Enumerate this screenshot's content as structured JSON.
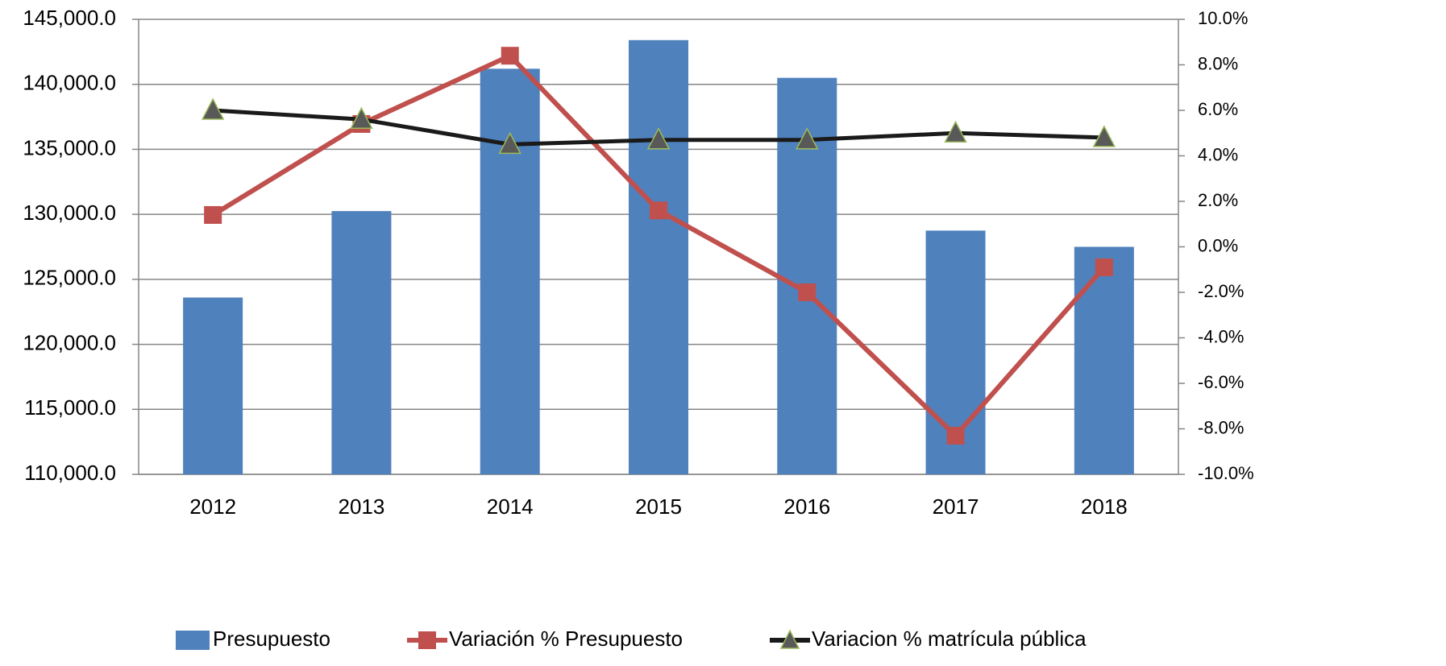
{
  "chart_data": {
    "type": "bar-line",
    "categories": [
      "2012",
      "2013",
      "2014",
      "2015",
      "2016",
      "2017",
      "2018"
    ],
    "series": [
      {
        "name": "Presupuesto",
        "type": "bar",
        "color": "#4f81bd",
        "values": [
          123600,
          130250,
          141200,
          143400,
          140500,
          128750,
          127500
        ]
      },
      {
        "name": "Variación % Presupuesto",
        "type": "line",
        "axis": "y2",
        "marker": "square",
        "color": "#c0504d",
        "values": [
          1.4,
          5.4,
          8.4,
          1.6,
          -2.0,
          -8.3,
          -0.9
        ]
      },
      {
        "name": "Variacion % matrícula pública",
        "type": "line",
        "axis": "y2",
        "marker": "triangle",
        "color": "#1a1a1a",
        "values": [
          6.0,
          5.6,
          4.5,
          4.7,
          4.7,
          5.0,
          4.8
        ]
      }
    ],
    "ylim": [
      110000,
      145000
    ],
    "yticks": [
      {
        "value": 110000,
        "label": "110,000.0"
      },
      {
        "value": 115000,
        "label": "115,000.0"
      },
      {
        "value": 120000,
        "label": "120,000.0"
      },
      {
        "value": 125000,
        "label": "125,000.0"
      },
      {
        "value": 130000,
        "label": "130,000.0"
      },
      {
        "value": 135000,
        "label": "135,000.0"
      },
      {
        "value": 140000,
        "label": "140,000.0"
      },
      {
        "value": 145000,
        "label": "145,000.0"
      }
    ],
    "y2lim": [
      -10,
      10
    ],
    "y2ticks": [
      {
        "value": -10,
        "label": "-10.0%"
      },
      {
        "value": -8,
        "label": "-8.0%"
      },
      {
        "value": -6,
        "label": "-6.0%"
      },
      {
        "value": -4,
        "label": "-4.0%"
      },
      {
        "value": -2,
        "label": "-2.0%"
      },
      {
        "value": 0,
        "label": "0.0%"
      },
      {
        "value": 2,
        "label": "2.0%"
      },
      {
        "value": 4,
        "label": "4.0%"
      },
      {
        "value": 6,
        "label": "6.0%"
      },
      {
        "value": 8,
        "label": "8.0%"
      },
      {
        "value": 10,
        "label": "10.0%"
      }
    ],
    "grid": true,
    "legend": "bottom"
  }
}
